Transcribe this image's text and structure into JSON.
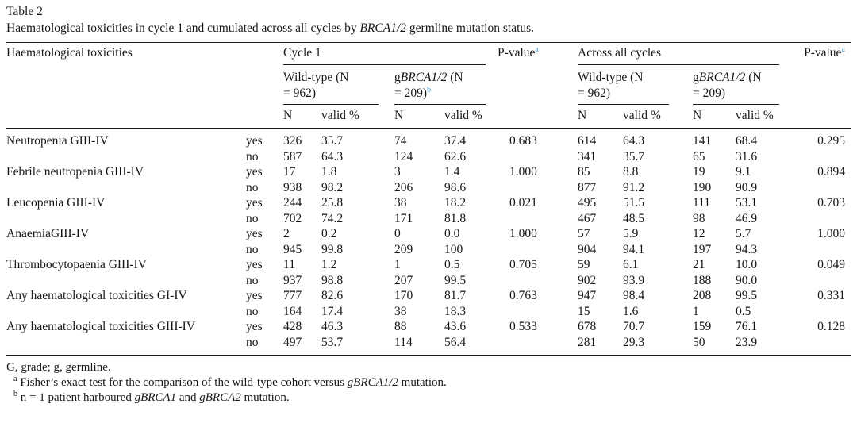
{
  "accent_color": "#4a9bd4",
  "title": "Table 2",
  "caption": [
    {
      "text": "Haematological toxicities in cycle 1 and cumulated across all cycles by "
    },
    {
      "text": "BRCA1/2",
      "italic": true
    },
    {
      "text": " germline mutation status."
    }
  ],
  "header": {
    "toxicities": "Haematological toxicities",
    "group_cycle1": "Cycle 1",
    "group_across": "Across all cycles",
    "p_value": [
      {
        "text": "P-value"
      },
      {
        "text": "a",
        "sup": true,
        "link": true
      }
    ],
    "cohort_cycle1_wildtype": [
      {
        "text": "Wild-type (N"
      },
      {
        "br": true
      },
      {
        "text": "= 962)"
      }
    ],
    "cohort_cycle1_gbrca": [
      {
        "text": "g"
      },
      {
        "text": "BRCA1/2",
        "italic": true
      },
      {
        "text": " (N"
      },
      {
        "br": true
      },
      {
        "text": "= 209)"
      },
      {
        "text": "b",
        "sup": true,
        "link": true
      }
    ],
    "cohort_across_wildtype": [
      {
        "text": "Wild-type (N"
      },
      {
        "br": true
      },
      {
        "text": "= 962)"
      }
    ],
    "cohort_across_gbrca": [
      {
        "text": "g"
      },
      {
        "text": "BRCA1/2",
        "italic": true
      },
      {
        "text": " (N"
      },
      {
        "br": true
      },
      {
        "text": "= 209)"
      }
    ],
    "sub_n": "N",
    "sub_valid_pct": "valid %"
  },
  "answer_labels": {
    "yes": "yes",
    "no": "no"
  },
  "rows": [
    {
      "toxicity": "Neutropenia GIII-IV",
      "yes": [
        "326",
        "35.7",
        "74",
        "37.4",
        "0.683",
        "614",
        "64.3",
        "141",
        "68.4",
        "0.295"
      ],
      "no": [
        "587",
        "64.3",
        "124",
        "62.6",
        "",
        "341",
        "35.7",
        "65",
        "31.6",
        ""
      ]
    },
    {
      "toxicity": "Febrile neutropenia GIII-IV",
      "yes": [
        "17",
        "1.8",
        "3",
        "1.4",
        "1.000",
        "85",
        "8.8",
        "19",
        "9.1",
        "0.894"
      ],
      "no": [
        "938",
        "98.2",
        "206",
        "98.6",
        "",
        "877",
        "91.2",
        "190",
        "90.9",
        ""
      ]
    },
    {
      "toxicity": "Leucopenia GIII-IV",
      "yes": [
        "244",
        "25.8",
        "38",
        "18.2",
        "0.021",
        "495",
        "51.5",
        "111",
        "53.1",
        "0.703"
      ],
      "no": [
        "702",
        "74.2",
        "171",
        "81.8",
        "",
        "467",
        "48.5",
        "98",
        "46.9",
        ""
      ]
    },
    {
      "toxicity": "AnaemiaGIII-IV",
      "yes": [
        "2",
        "0.2",
        "0",
        "0.0",
        "1.000",
        "57",
        "5.9",
        "12",
        "5.7",
        "1.000"
      ],
      "no": [
        "945",
        "99.8",
        "209",
        "100",
        "",
        "904",
        "94.1",
        "197",
        "94.3",
        ""
      ]
    },
    {
      "toxicity": "Thrombocytopaenia GIII-IV",
      "yes": [
        "11",
        "1.2",
        "1",
        "0.5",
        "0.705",
        "59",
        "6.1",
        "21",
        "10.0",
        "0.049"
      ],
      "no": [
        "937",
        "98.8",
        "207",
        "99.5",
        "",
        "902",
        "93.9",
        "188",
        "90.0",
        ""
      ]
    },
    {
      "toxicity": "Any haematological toxicities GI-IV",
      "yes": [
        "777",
        "82.6",
        "170",
        "81.7",
        "0.763",
        "947",
        "98.4",
        "208",
        "99.5",
        "0.331"
      ],
      "no": [
        "164",
        "17.4",
        "38",
        "18.3",
        "",
        "15",
        "1.6",
        "1",
        "0.5",
        ""
      ]
    },
    {
      "toxicity": "Any haematological toxicities GIII-IV",
      "yes": [
        "428",
        "46.3",
        "88",
        "43.6",
        "0.533",
        "678",
        "70.7",
        "159",
        "76.1",
        "0.128"
      ],
      "no": [
        "497",
        "53.7",
        "114",
        "56.4",
        "",
        "281",
        "29.3",
        "50",
        "23.9",
        ""
      ]
    }
  ],
  "footnotes": {
    "abbreviations": [
      {
        "text": "G, grade; g, germline."
      }
    ],
    "a": [
      {
        "text": "a",
        "sup": true
      },
      {
        "text": " Fisher’s exact test for the comparison of the wild-type cohort versus "
      },
      {
        "text": "gBRCA1/2",
        "italic": true
      },
      {
        "text": " mutation."
      }
    ],
    "b": [
      {
        "text": "b",
        "sup": true
      },
      {
        "text": " n = 1 patient harboured "
      },
      {
        "text": "gBRCA1",
        "italic": true
      },
      {
        "text": " and "
      },
      {
        "text": "gBRCA2",
        "italic": true
      },
      {
        "text": " mutation."
      }
    ]
  }
}
